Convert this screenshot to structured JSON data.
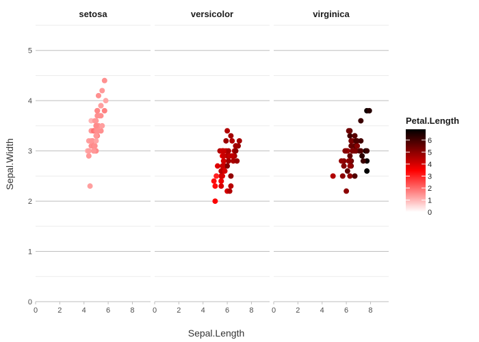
{
  "chart_data": {
    "type": "scatter",
    "facet_by": "Species",
    "facets": [
      {
        "name": "setosa",
        "points": [
          [
            5.1,
            3.5,
            1.4
          ],
          [
            4.9,
            3.0,
            1.4
          ],
          [
            4.7,
            3.2,
            1.3
          ],
          [
            4.6,
            3.1,
            1.5
          ],
          [
            5.0,
            3.6,
            1.4
          ],
          [
            5.4,
            3.9,
            1.7
          ],
          [
            4.6,
            3.4,
            1.4
          ],
          [
            5.0,
            3.4,
            1.5
          ],
          [
            4.4,
            2.9,
            1.4
          ],
          [
            4.9,
            3.1,
            1.5
          ],
          [
            5.4,
            3.7,
            1.5
          ],
          [
            4.8,
            3.4,
            1.6
          ],
          [
            4.8,
            3.0,
            1.4
          ],
          [
            4.3,
            3.0,
            1.1
          ],
          [
            5.8,
            4.0,
            1.2
          ],
          [
            5.7,
            4.4,
            1.5
          ],
          [
            5.4,
            3.9,
            1.3
          ],
          [
            5.1,
            3.5,
            1.4
          ],
          [
            5.7,
            3.8,
            1.7
          ],
          [
            5.1,
            3.8,
            1.5
          ],
          [
            5.4,
            3.4,
            1.7
          ],
          [
            5.1,
            3.7,
            1.5
          ],
          [
            4.6,
            3.6,
            1.0
          ],
          [
            5.1,
            3.3,
            1.7
          ],
          [
            4.8,
            3.4,
            1.9
          ],
          [
            5.0,
            3.0,
            1.6
          ],
          [
            5.0,
            3.4,
            1.6
          ],
          [
            5.2,
            3.5,
            1.5
          ],
          [
            5.2,
            3.4,
            1.4
          ],
          [
            4.7,
            3.2,
            1.6
          ],
          [
            4.8,
            3.1,
            1.6
          ],
          [
            5.4,
            3.4,
            1.5
          ],
          [
            5.2,
            4.1,
            1.5
          ],
          [
            5.5,
            4.2,
            1.4
          ],
          [
            4.9,
            3.1,
            1.5
          ],
          [
            5.0,
            3.2,
            1.2
          ],
          [
            5.5,
            3.5,
            1.3
          ],
          [
            4.9,
            3.6,
            1.4
          ],
          [
            4.4,
            3.0,
            1.3
          ],
          [
            5.1,
            3.4,
            1.5
          ],
          [
            5.0,
            3.5,
            1.3
          ],
          [
            4.5,
            2.3,
            1.3
          ],
          [
            4.4,
            3.2,
            1.3
          ],
          [
            5.0,
            3.5,
            1.6
          ],
          [
            5.1,
            3.8,
            1.9
          ],
          [
            4.8,
            3.0,
            1.4
          ],
          [
            5.1,
            3.8,
            1.6
          ],
          [
            4.6,
            3.2,
            1.4
          ],
          [
            5.3,
            3.7,
            1.5
          ],
          [
            5.0,
            3.3,
            1.4
          ]
        ]
      },
      {
        "name": "versicolor",
        "points": [
          [
            7.0,
            3.2,
            4.7
          ],
          [
            6.4,
            3.2,
            4.5
          ],
          [
            6.9,
            3.1,
            4.9
          ],
          [
            5.5,
            2.3,
            4.0
          ],
          [
            6.5,
            2.8,
            4.6
          ],
          [
            5.7,
            2.8,
            4.5
          ],
          [
            6.3,
            3.3,
            4.7
          ],
          [
            4.9,
            2.4,
            3.3
          ],
          [
            6.6,
            2.9,
            4.6
          ],
          [
            5.2,
            2.7,
            3.9
          ],
          [
            5.0,
            2.0,
            3.5
          ],
          [
            5.9,
            3.0,
            4.2
          ],
          [
            6.0,
            2.2,
            4.0
          ],
          [
            6.1,
            2.9,
            4.7
          ],
          [
            5.6,
            2.9,
            3.6
          ],
          [
            6.7,
            3.1,
            4.4
          ],
          [
            5.6,
            3.0,
            4.5
          ],
          [
            5.8,
            2.7,
            4.1
          ],
          [
            6.2,
            2.2,
            4.5
          ],
          [
            5.6,
            2.5,
            3.9
          ],
          [
            5.9,
            3.2,
            4.8
          ],
          [
            6.1,
            2.8,
            4.0
          ],
          [
            6.3,
            2.5,
            4.9
          ],
          [
            6.1,
            2.8,
            4.7
          ],
          [
            6.4,
            2.9,
            4.3
          ],
          [
            6.6,
            3.0,
            4.4
          ],
          [
            6.8,
            2.8,
            4.8
          ],
          [
            6.7,
            3.0,
            5.0
          ],
          [
            6.0,
            2.9,
            4.5
          ],
          [
            5.7,
            2.6,
            3.5
          ],
          [
            5.5,
            2.4,
            3.8
          ],
          [
            5.5,
            2.4,
            3.7
          ],
          [
            5.8,
            2.7,
            3.9
          ],
          [
            6.0,
            2.7,
            5.1
          ],
          [
            5.4,
            3.0,
            4.5
          ],
          [
            6.0,
            3.4,
            4.5
          ],
          [
            6.7,
            3.1,
            4.7
          ],
          [
            6.3,
            2.3,
            4.4
          ],
          [
            5.6,
            3.0,
            4.1
          ],
          [
            5.5,
            2.5,
            4.0
          ],
          [
            5.5,
            2.6,
            4.4
          ],
          [
            6.1,
            3.0,
            4.6
          ],
          [
            5.8,
            2.6,
            4.0
          ],
          [
            5.0,
            2.3,
            3.3
          ],
          [
            5.6,
            2.7,
            4.2
          ],
          [
            5.7,
            3.0,
            4.2
          ],
          [
            5.7,
            2.9,
            4.2
          ],
          [
            6.2,
            2.9,
            4.3
          ],
          [
            5.1,
            2.5,
            3.0
          ],
          [
            5.7,
            2.8,
            4.1
          ]
        ]
      },
      {
        "name": "virginica",
        "points": [
          [
            6.3,
            3.3,
            6.0
          ],
          [
            5.8,
            2.7,
            5.1
          ],
          [
            7.1,
            3.0,
            5.9
          ],
          [
            6.3,
            2.9,
            5.6
          ],
          [
            6.5,
            3.0,
            5.8
          ],
          [
            7.6,
            3.0,
            6.6
          ],
          [
            4.9,
            2.5,
            4.5
          ],
          [
            7.3,
            2.9,
            6.3
          ],
          [
            6.7,
            2.5,
            5.8
          ],
          [
            7.2,
            3.6,
            6.1
          ],
          [
            6.5,
            3.2,
            5.1
          ],
          [
            6.4,
            2.7,
            5.3
          ],
          [
            6.8,
            3.0,
            5.5
          ],
          [
            5.7,
            2.5,
            5.0
          ],
          [
            5.8,
            2.8,
            5.1
          ],
          [
            6.4,
            3.2,
            5.3
          ],
          [
            6.5,
            3.0,
            5.5
          ],
          [
            7.7,
            3.8,
            6.7
          ],
          [
            7.7,
            2.6,
            6.9
          ],
          [
            6.0,
            2.2,
            5.0
          ],
          [
            6.9,
            3.2,
            5.7
          ],
          [
            5.6,
            2.8,
            4.9
          ],
          [
            7.7,
            2.8,
            6.7
          ],
          [
            6.3,
            2.7,
            4.9
          ],
          [
            6.7,
            3.3,
            5.7
          ],
          [
            7.2,
            3.2,
            6.0
          ],
          [
            6.2,
            2.8,
            4.8
          ],
          [
            6.1,
            3.0,
            4.9
          ],
          [
            6.4,
            2.8,
            5.6
          ],
          [
            7.2,
            3.0,
            5.8
          ],
          [
            7.4,
            2.8,
            6.1
          ],
          [
            7.9,
            3.8,
            6.4
          ],
          [
            6.4,
            2.8,
            5.6
          ],
          [
            6.3,
            2.8,
            5.1
          ],
          [
            6.1,
            2.6,
            5.6
          ],
          [
            7.7,
            3.0,
            6.1
          ],
          [
            6.3,
            3.4,
            5.6
          ],
          [
            6.4,
            3.1,
            5.5
          ],
          [
            6.0,
            3.0,
            4.8
          ],
          [
            6.9,
            3.1,
            5.4
          ],
          [
            6.7,
            3.1,
            5.6
          ],
          [
            6.9,
            3.1,
            5.1
          ],
          [
            5.8,
            2.7,
            5.1
          ],
          [
            6.8,
            3.2,
            5.9
          ],
          [
            6.7,
            3.3,
            5.7
          ],
          [
            6.7,
            3.0,
            5.2
          ],
          [
            6.3,
            2.5,
            5.0
          ],
          [
            6.5,
            3.0,
            5.2
          ],
          [
            6.2,
            3.4,
            5.4
          ],
          [
            5.9,
            3.0,
            5.1
          ]
        ]
      }
    ],
    "point_fields": [
      "Sepal.Length",
      "Sepal.Width",
      "Petal.Length"
    ],
    "xlabel": "Sepal.Length",
    "ylabel": "Sepal.Width",
    "xlim": [
      0,
      9.5
    ],
    "ylim": [
      0,
      5.5
    ],
    "xticks": [
      0,
      2,
      4,
      6,
      8
    ],
    "yticks": [
      0,
      1,
      2,
      3,
      4,
      5
    ],
    "grid": true,
    "legend": {
      "title": "Petal.Length",
      "placement": "right",
      "ticks": [
        0,
        1,
        2,
        3,
        4,
        5,
        6
      ],
      "range": [
        0,
        6.9
      ],
      "colors": [
        "#ffffff",
        "#ff0000",
        "#000000"
      ]
    }
  }
}
